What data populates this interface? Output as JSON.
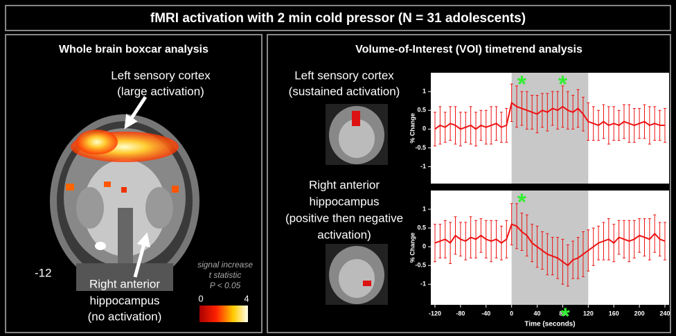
{
  "title": "fMRI activation with 2 min cold pressor (N = 31 adolescents)",
  "left_panel": {
    "title": "Whole brain boxcar analysis",
    "label_top": [
      "Left sensory cortex",
      "(large activation)"
    ],
    "slice": "-12",
    "label_bottom": [
      "Right anterior",
      "hippocampus",
      "(no activation)"
    ],
    "legend": [
      "signal increase",
      "t statistic",
      "P < 0.05"
    ],
    "scale_min": "0",
    "scale_max": "4"
  },
  "right_panel": {
    "title": "Volume-of-Interest (VOI) timetrend analysis",
    "voi_labels": [
      [
        "Left sensory cortex",
        "(sustained activation)"
      ],
      [
        "Right anterior",
        "hippocampus",
        "(positive then negative",
        "activation)"
      ]
    ]
  },
  "chart_data": [
    {
      "type": "line",
      "ylabel": "% Change",
      "x": [
        -120,
        -112,
        -104,
        -96,
        -88,
        -80,
        -72,
        -64,
        -56,
        -48,
        -40,
        -32,
        -24,
        -16,
        -8,
        0,
        8,
        16,
        24,
        32,
        40,
        48,
        56,
        64,
        72,
        80,
        88,
        96,
        104,
        112,
        120,
        128,
        136,
        144,
        152,
        160,
        168,
        176,
        184,
        192,
        200,
        208,
        216,
        224,
        232,
        240
      ],
      "series": [
        {
          "color": "#ee1111",
          "values": [
            0.0,
            0.1,
            0.05,
            0.15,
            0.1,
            0.0,
            0.05,
            0.1,
            0.0,
            0.1,
            0.05,
            0.1,
            0.15,
            0.05,
            0.1,
            0.7,
            0.6,
            0.55,
            0.5,
            0.45,
            0.4,
            0.5,
            0.45,
            0.55,
            0.5,
            0.6,
            0.5,
            0.45,
            0.55,
            0.4,
            0.2,
            0.15,
            0.1,
            0.2,
            0.1,
            0.15,
            0.1,
            0.2,
            0.15,
            0.1,
            0.15,
            0.2,
            0.1,
            0.15,
            0.1,
            0.1
          ],
          "errors": [
            0.45,
            0.5,
            0.4,
            0.45,
            0.5,
            0.45,
            0.4,
            0.5,
            0.45,
            0.4,
            0.45,
            0.5,
            0.45,
            0.4,
            0.45,
            0.5,
            0.55,
            0.45,
            0.5,
            0.45,
            0.5,
            0.45,
            0.5,
            0.45,
            0.5,
            0.55,
            0.5,
            0.45,
            0.5,
            0.45,
            0.5,
            0.45,
            0.4,
            0.45,
            0.5,
            0.45,
            0.4,
            0.45,
            0.5,
            0.45,
            0.4,
            0.45,
            0.5,
            0.45,
            0.4,
            0.45
          ]
        }
      ],
      "xlim": [
        -120,
        240
      ],
      "ylim": [
        -1.45,
        1.5
      ],
      "yticks": [
        -1,
        -0.5,
        0,
        0.5,
        1
      ],
      "shaded_range": [
        0,
        120
      ],
      "annotation_color": "#33ee33",
      "annotations": [
        {
          "text": "*",
          "x": 16,
          "y": 1.3
        },
        {
          "text": "*",
          "x": 80,
          "y": 1.3
        }
      ]
    },
    {
      "type": "line",
      "ylabel": "% Change",
      "xlabel": "Time (seconds)",
      "x": [
        -120,
        -112,
        -104,
        -96,
        -88,
        -80,
        -72,
        -64,
        -56,
        -48,
        -40,
        -32,
        -24,
        -16,
        -8,
        0,
        8,
        16,
        24,
        32,
        40,
        48,
        56,
        64,
        72,
        80,
        88,
        96,
        104,
        112,
        120,
        128,
        136,
        144,
        152,
        160,
        168,
        176,
        184,
        192,
        200,
        208,
        216,
        224,
        232,
        240
      ],
      "series": [
        {
          "color": "#ee1111",
          "values": [
            0.1,
            0.15,
            0.2,
            0.1,
            0.3,
            0.2,
            0.15,
            0.25,
            0.2,
            0.3,
            0.2,
            0.15,
            0.2,
            0.1,
            0.2,
            0.6,
            0.55,
            0.4,
            0.3,
            0.1,
            0.0,
            -0.1,
            -0.2,
            -0.25,
            -0.3,
            -0.4,
            -0.5,
            -0.35,
            -0.3,
            -0.2,
            -0.1,
            0.0,
            0.1,
            0.15,
            0.2,
            0.1,
            0.25,
            0.2,
            0.15,
            0.2,
            0.3,
            0.25,
            0.2,
            0.35,
            0.2,
            0.15
          ],
          "errors": [
            0.5,
            0.45,
            0.5,
            0.55,
            0.5,
            0.45,
            0.5,
            0.55,
            0.5,
            0.45,
            0.5,
            0.55,
            0.5,
            0.45,
            0.5,
            0.55,
            0.6,
            0.5,
            0.55,
            0.5,
            0.55,
            0.5,
            0.55,
            0.5,
            0.55,
            0.6,
            0.55,
            0.5,
            0.55,
            0.6,
            0.55,
            0.5,
            0.45,
            0.5,
            0.55,
            0.5,
            0.45,
            0.5,
            0.55,
            0.5,
            0.45,
            0.5,
            0.55,
            0.5,
            0.45,
            0.5
          ]
        }
      ],
      "xlim": [
        -120,
        240
      ],
      "ylim": [
        -1.55,
        1.5
      ],
      "yticks": [
        -1,
        -0.5,
        0,
        0.5,
        1
      ],
      "xticks": [
        -120,
        -80,
        -40,
        0,
        40,
        80,
        120,
        160,
        200,
        240
      ],
      "shaded_range": [
        0,
        120
      ],
      "annotation_color": "#33ee33",
      "annotations": [
        {
          "text": "*",
          "x": 16,
          "y": 1.3
        },
        {
          "text": "*",
          "x": 84,
          "y": -1.75
        }
      ]
    }
  ]
}
